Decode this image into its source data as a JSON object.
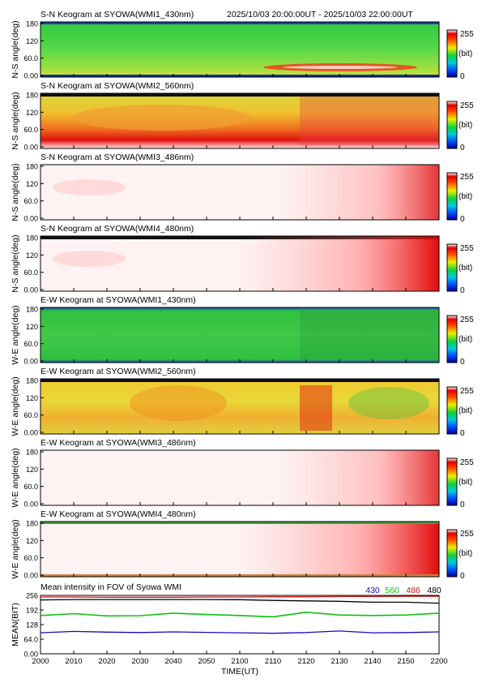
{
  "header": {
    "time_range": "2025/10/03 20:00:00UT - 2025/10/03 22:00:00UT"
  },
  "colors": {
    "ch430": "#1010b0",
    "ch560": "#10c010",
    "ch486": "#d01010",
    "ch480": "#000000"
  },
  "colorbar": {
    "max_label": "255",
    "unit_label": "(bit)",
    "min_label": "0"
  },
  "x_axis": {
    "label": "TIME(UT)",
    "ticks": [
      "2000",
      "2010",
      "2020",
      "2030",
      "2040",
      "2050",
      "2100",
      "2110",
      "2120",
      "2130",
      "2140",
      "2150",
      "2200"
    ]
  },
  "keograms": [
    {
      "title": "S-N Keogram at SYOWA(WMI1_430nm)",
      "ylabel": "N-S angle(deg)",
      "ticks": [
        "180",
        "120",
        "60.0",
        "0.00"
      ],
      "style": "green_sn"
    },
    {
      "title": "S-N Keogram at SYOWA(WMI2_560nm)",
      "ylabel": "N-S angle(deg)",
      "ticks": [
        "180",
        "120",
        "60.0",
        "0.00"
      ],
      "style": "hot_sn"
    },
    {
      "title": "S-N Keogram at SYOWA(WMI3_486nm)",
      "ylabel": "N-S angle(deg)",
      "ticks": [
        "180",
        "120",
        "60.0",
        "0.00"
      ],
      "style": "pale_sn"
    },
    {
      "title": "S-N Keogram at SYOWA(WMI4_480nm)",
      "ylabel": "N-S angle(deg)",
      "ticks": [
        "180",
        "120",
        "60.0",
        "0.00"
      ],
      "style": "pale_sn2"
    },
    {
      "title": "E-W Keogram at SYOWA(WMI1_430nm)",
      "ylabel": "W-E angle(deg)",
      "ticks": [
        "180",
        "120",
        "60.0",
        "0.00"
      ],
      "style": "green_ew"
    },
    {
      "title": "E-W Keogram at SYOWA(WMI2_560nm)",
      "ylabel": "W-E angle(deg)",
      "ticks": [
        "180",
        "120",
        "60.0",
        "0.00"
      ],
      "style": "hot_ew"
    },
    {
      "title": "E-W Keogram at SYOWA(WMI3_486nm)",
      "ylabel": "W-E angle(deg)",
      "ticks": [
        "180",
        "120",
        "60.0",
        "0.00"
      ],
      "style": "pale_ew"
    },
    {
      "title": "E-W Keogram at SYOWA(WMI4_480nm)",
      "ylabel": "W-E angle(deg)",
      "ticks": [
        "180",
        "120",
        "60.0",
        "0.00"
      ],
      "style": "pale_ew2"
    }
  ],
  "chart_data": {
    "type": "line",
    "title": "Mean intensity in FOV of Syowa WMI",
    "xlabel": "TIME(UT)",
    "ylabel": "MEAN(BIT)",
    "ylim": [
      0,
      256
    ],
    "y_ticks": [
      "256",
      "192",
      "128",
      "64.0",
      "0.00"
    ],
    "y_tick_values": [
      256,
      192,
      128,
      64,
      0
    ],
    "x_ticks": [
      "2000",
      "2010",
      "2020",
      "2030",
      "2040",
      "2050",
      "2100",
      "2110",
      "2120",
      "2130",
      "2140",
      "2150",
      "2200"
    ],
    "legend_placement": "top-right",
    "series": [
      {
        "name": "430",
        "color": "#1010b0",
        "x": [
          0,
          10,
          20,
          30,
          40,
          50,
          60,
          70,
          80,
          90,
          100,
          110,
          120
        ],
        "values": [
          92,
          98,
          95,
          93,
          96,
          94,
          92,
          90,
          93,
          100,
          92,
          93,
          96
        ]
      },
      {
        "name": "560",
        "color": "#10c010",
        "x": [
          0,
          10,
          20,
          30,
          40,
          50,
          60,
          70,
          80,
          90,
          100,
          110,
          120
        ],
        "values": [
          168,
          176,
          166,
          167,
          178,
          172,
          168,
          162,
          182,
          170,
          168,
          170,
          178
        ]
      },
      {
        "name": "486",
        "color": "#d01010",
        "x": [
          0,
          10,
          20,
          30,
          40,
          50,
          60,
          70,
          80,
          90,
          100,
          110,
          120
        ],
        "values": [
          249,
          249,
          248,
          248,
          248,
          249,
          249,
          250,
          250,
          251,
          251,
          252,
          252
        ]
      },
      {
        "name": "480",
        "color": "#000000",
        "x": [
          0,
          10,
          20,
          30,
          40,
          50,
          60,
          70,
          80,
          90,
          100,
          110,
          120
        ],
        "values": [
          236,
          238,
          238,
          238,
          238,
          238,
          237,
          234,
          232,
          230,
          226,
          226,
          222
        ]
      }
    ]
  }
}
